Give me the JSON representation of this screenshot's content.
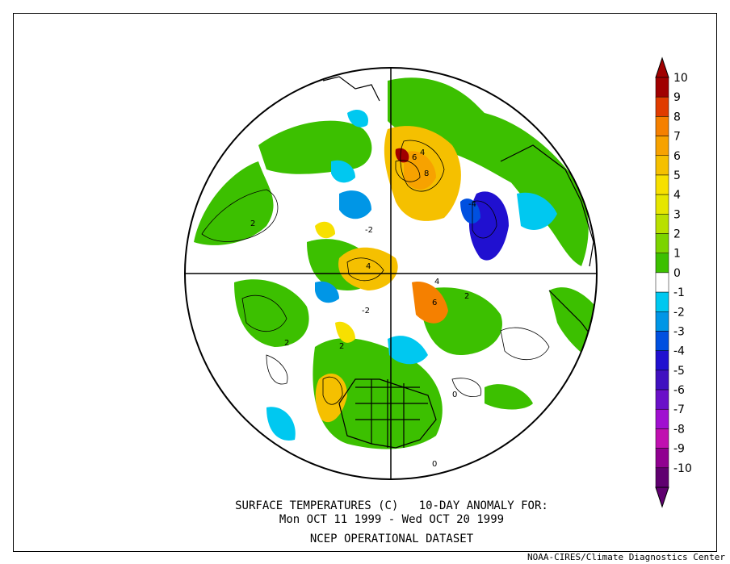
{
  "map": {
    "title_line1": "SURFACE TEMPERATURES (C)   10-DAY ANOMALY FOR:",
    "title_line2": "Mon OCT 11 1999 - Wed OCT 20 1999",
    "dataset": "NCEP OPERATIONAL DATASET",
    "credit": "NOAA-CIRES/Climate Diagnostics Center",
    "projection": "north polar stereographic",
    "contour_labels": [
      "2",
      "4",
      "6",
      "8",
      "-2",
      "-4",
      "0"
    ]
  },
  "colorbar": {
    "levels": [
      "10",
      "9",
      "8",
      "7",
      "6",
      "5",
      "4",
      "3",
      "2",
      "1",
      "0",
      "-1",
      "-2",
      "-3",
      "-4",
      "-5",
      "-6",
      "-7",
      "-8",
      "-9",
      "-10"
    ],
    "colors": [
      "#a00000",
      "#e03c00",
      "#f58000",
      "#f7a200",
      "#f5c000",
      "#f7e000",
      "#e6e600",
      "#b9e000",
      "#7cd400",
      "#3cc000",
      "#ffffff",
      "#00c8f0",
      "#0096e6",
      "#0050e0",
      "#2010d0",
      "#4010c0",
      "#6a10c8",
      "#a010d0",
      "#c010b0",
      "#900090",
      "#600070"
    ]
  }
}
